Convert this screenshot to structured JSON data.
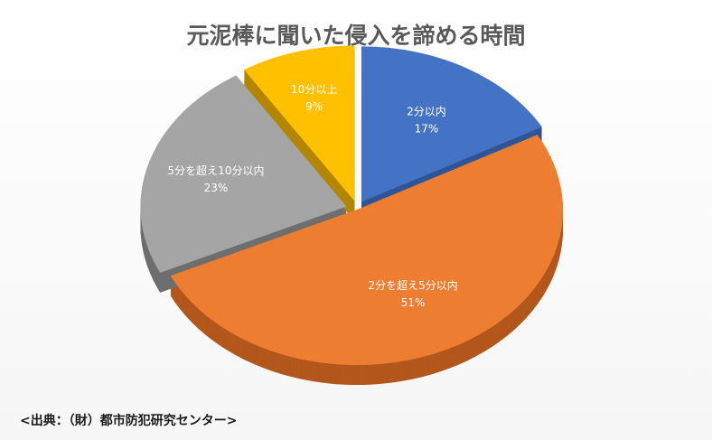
{
  "chart_data": {
    "type": "pie",
    "title": "元泥棒に聞いた侵入を諦める時間",
    "slices": [
      {
        "label": "2分以内",
        "value": 17,
        "value_label": "17%",
        "color": "#4472C4",
        "side_color": "#2F5597"
      },
      {
        "label": "2分を超え5分以内",
        "value": 51,
        "value_label": "51%",
        "color": "#ED7D31",
        "side_color": "#B3571C"
      },
      {
        "label": "5分を超え10分以内",
        "value": 23,
        "value_label": "23%",
        "color": "#A5A5A5",
        "side_color": "#6E6E6E"
      },
      {
        "label": "10分以上",
        "value": 9,
        "value_label": "9%",
        "color": "#FFC000",
        "side_color": "#B38600"
      }
    ],
    "start_direction": "top",
    "direction": "clockwise",
    "style": "3d-exploded"
  },
  "footer": {
    "source": "<出典：（財）都市防犯研究センター>"
  }
}
